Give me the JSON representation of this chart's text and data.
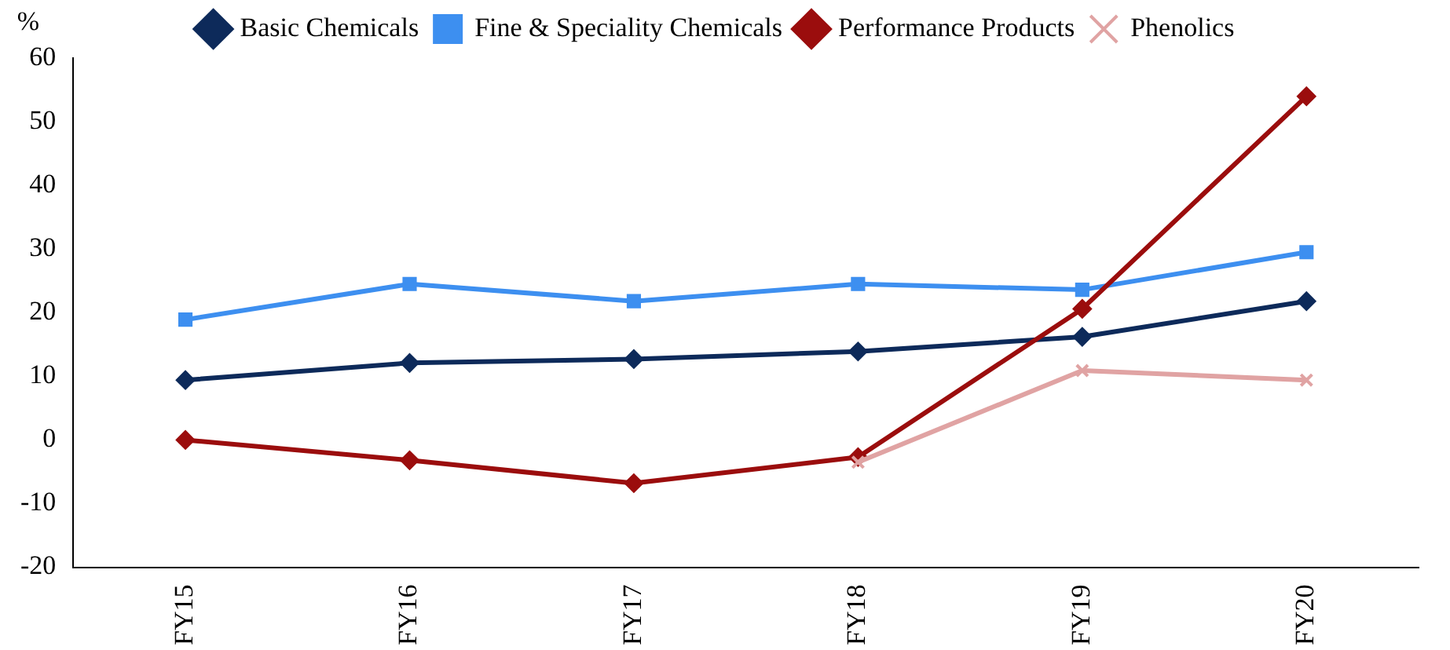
{
  "chart_data": {
    "type": "line",
    "ylabel": "%",
    "categories": [
      "FY15",
      "FY16",
      "FY17",
      "FY18",
      "FY19",
      "FY20"
    ],
    "series": [
      {
        "name": "Basic Chemicals",
        "color": "#0d2a5a",
        "marker": "diamond",
        "values": [
          9.4,
          12.1,
          12.7,
          13.9,
          16.2,
          21.8
        ]
      },
      {
        "name": "Fine & Speciality Chemicals",
        "color": "#3d8ff0",
        "marker": "square",
        "values": [
          18.9,
          24.5,
          21.8,
          24.5,
          23.6,
          29.5
        ]
      },
      {
        "name": "Performance Products",
        "color": "#9b0d0d",
        "marker": "diamond",
        "values": [
          0,
          -3.2,
          -6.8,
          -2.7,
          20.6,
          54
        ]
      },
      {
        "name": "Phenolics",
        "color": "#e0a3a3",
        "marker": "cross",
        "values": [
          null,
          null,
          null,
          -3.5,
          10.9,
          9.4
        ]
      }
    ],
    "ylim": [
      -20,
      60
    ],
    "yticks": [
      -20,
      -10,
      0,
      10,
      20,
      30,
      40,
      50,
      60
    ],
    "grid": false,
    "legend": "top",
    "line_style": "solid"
  }
}
